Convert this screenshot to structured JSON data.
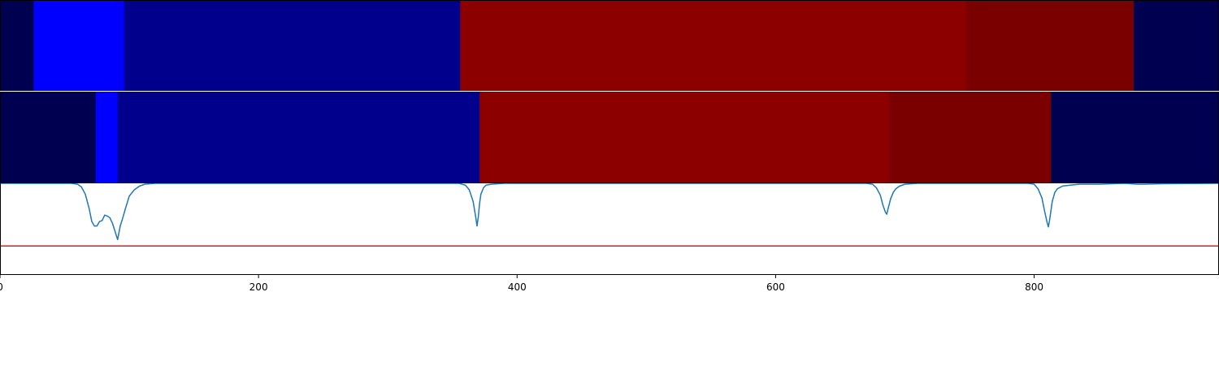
{
  "chart_data": {
    "type": "heatmap",
    "title": "",
    "xlabel": "",
    "ylabel": "",
    "xlim": [
      0,
      943
    ],
    "grid": false,
    "legend": "none",
    "colors": {
      "dark_navy": "#000050",
      "bright_blue": "#0000ff",
      "navy": "#00008c",
      "red": "#8c0000",
      "dark_red": "#7a0000",
      "curve": "#1f77b4",
      "threshold": "#e31a1c"
    },
    "segment_rows": [
      {
        "segments": [
          {
            "start": 0,
            "end": 26,
            "color": "#000050"
          },
          {
            "start": 26,
            "end": 96,
            "color": "#0000ff"
          },
          {
            "start": 96,
            "end": 356,
            "color": "#00008c"
          },
          {
            "start": 356,
            "end": 747,
            "color": "#8c0000"
          },
          {
            "start": 747,
            "end": 877,
            "color": "#7a0000"
          },
          {
            "start": 877,
            "end": 943,
            "color": "#000050"
          }
        ]
      },
      {
        "segments": [
          {
            "start": 0,
            "end": 74,
            "color": "#000050"
          },
          {
            "start": 74,
            "end": 91,
            "color": "#0000ff"
          },
          {
            "start": 91,
            "end": 371,
            "color": "#00008c"
          },
          {
            "start": 371,
            "end": 688,
            "color": "#8c0000"
          },
          {
            "start": 688,
            "end": 813,
            "color": "#7a0000"
          },
          {
            "start": 813,
            "end": 943,
            "color": "#000050"
          }
        ]
      }
    ],
    "curve": {
      "ylim": [
        0,
        1
      ],
      "threshold": 0.31,
      "x": [
        0,
        55,
        60,
        63,
        66,
        69,
        71,
        73,
        75,
        77,
        79,
        81,
        83,
        85,
        87,
        89,
        91,
        93,
        95,
        97,
        100,
        104,
        108,
        112,
        120,
        355,
        360,
        363,
        366,
        368,
        369,
        370,
        371,
        372,
        374,
        376,
        380,
        390,
        670,
        675,
        678,
        681,
        683,
        685,
        686,
        687,
        689,
        691,
        693,
        696,
        700,
        710,
        795,
        800,
        803,
        806,
        808,
        810,
        811,
        812,
        814,
        816,
        818,
        822,
        828,
        835,
        850,
        870,
        880,
        885,
        900,
        943
      ],
      "y": [
        1.0,
        1.0,
        0.99,
        0.96,
        0.88,
        0.72,
        0.58,
        0.53,
        0.53,
        0.58,
        0.59,
        0.65,
        0.64,
        0.62,
        0.56,
        0.47,
        0.38,
        0.53,
        0.62,
        0.72,
        0.86,
        0.93,
        0.97,
        0.99,
        1.0,
        1.0,
        0.98,
        0.93,
        0.8,
        0.63,
        0.53,
        0.63,
        0.78,
        0.88,
        0.95,
        0.98,
        0.99,
        1.0,
        1.0,
        0.99,
        0.95,
        0.87,
        0.76,
        0.68,
        0.66,
        0.72,
        0.83,
        0.9,
        0.94,
        0.97,
        0.99,
        1.0,
        1.0,
        0.99,
        0.94,
        0.84,
        0.7,
        0.57,
        0.52,
        0.6,
        0.8,
        0.9,
        0.94,
        0.97,
        0.98,
        0.99,
        0.99,
        1.0,
        0.99,
        0.99,
        0.995,
        1.0
      ]
    },
    "x_ticks": [
      0,
      200,
      400,
      600,
      800
    ],
    "x_tick_labels": [
      "0",
      "200",
      "400",
      "600",
      "800"
    ]
  }
}
